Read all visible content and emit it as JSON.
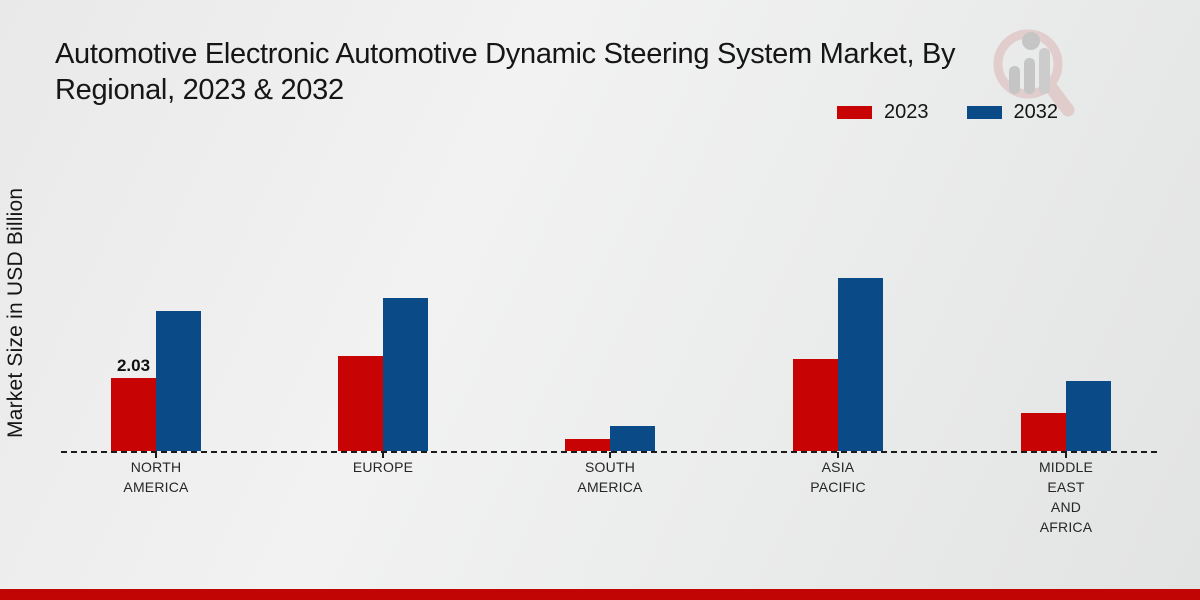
{
  "title": "Automotive Electronic Automotive Dynamic Steering System Market, By Regional, 2023 & 2032",
  "title_lines": [
    "Automotive Electronic Automotive Dynamic Steering System Market, By",
    "Regional, 2023 & 2032"
  ],
  "y_axis_label": "Market Size in USD Billion",
  "legend": [
    {
      "label": "2023",
      "color": "#c80303"
    },
    {
      "label": "2032",
      "color": "#0a4b87"
    }
  ],
  "colors": {
    "bar_2023": "#c80303",
    "bar_2032": "#0a4b87",
    "bottom_stripe": "#c10404",
    "baseline": "#1b1b1b",
    "watermark_ring": "#dcb6b6",
    "watermark_gray": "#a8a8a8"
  },
  "watermark_icon": "magnifier-bar-chart-logo",
  "chart_data": {
    "type": "bar",
    "categories": [
      "NORTH AMERICA",
      "EUROPE",
      "SOUTH AMERICA",
      "ASIA PACIFIC",
      "MIDDLE EAST AND AFRICA"
    ],
    "category_label_lines": [
      [
        "NORTH",
        "AMERICA"
      ],
      [
        "EUROPE"
      ],
      [
        "SOUTH",
        "AMERICA"
      ],
      [
        "ASIA",
        "PACIFIC"
      ],
      [
        "MIDDLE",
        "EAST",
        "AND",
        "AFRICA"
      ]
    ],
    "series": [
      {
        "name": "2023",
        "color": "#c80303",
        "values": [
          2.03,
          2.64,
          0.33,
          2.56,
          1.06
        ]
      },
      {
        "name": "2032",
        "color": "#0a4b87",
        "values": [
          3.89,
          4.25,
          0.7,
          4.81,
          1.95
        ]
      }
    ],
    "annotations": [
      {
        "series": "2023",
        "category_index": 0,
        "text": "2.03"
      }
    ],
    "title": "Automotive Electronic Automotive Dynamic Steering System Market, By Regional, 2023 & 2032",
    "xlabel": "",
    "ylabel": "Market Size in USD Billion",
    "ylim": [
      0,
      5
    ],
    "grid": false,
    "legend_position": "top-right",
    "baseline_style": "dashed"
  }
}
